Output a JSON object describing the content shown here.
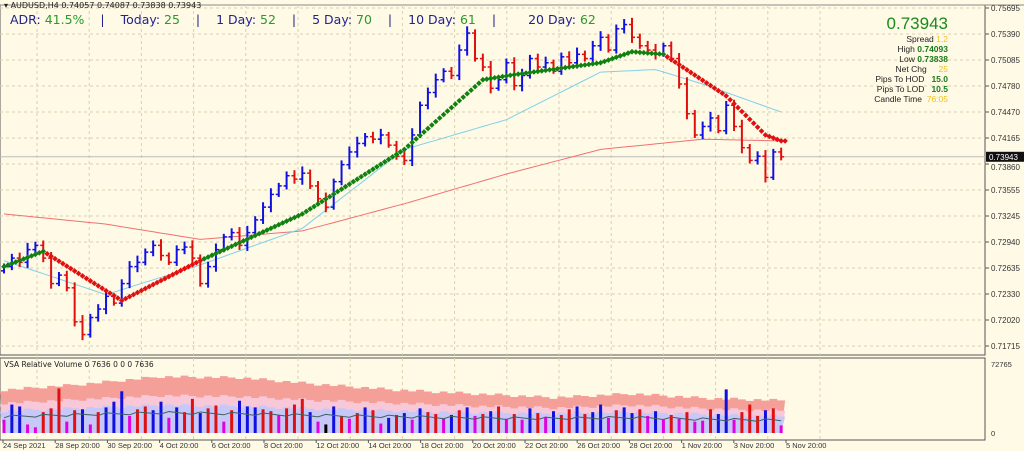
{
  "header": {
    "symbol_line": "AUDUSD,H4  0.74057 0.74087 0.73838 0.73943"
  },
  "adr_bar": {
    "adr_label": "ADR:",
    "adr_value": "41.5%",
    "today_label": "Today:",
    "today_value": "25",
    "day1_label": "1 Day:",
    "day1_value": "52",
    "day5_label": "5 Day:",
    "day5_value": "70",
    "day10_label": "10 Day:",
    "day10_value": "61",
    "day20_label": "20 Day:",
    "day20_value": "62",
    "separator": "|"
  },
  "info_panel": {
    "price": "0.73943",
    "spread_label": "Spread",
    "spread_value": "1.2",
    "high_label": "High",
    "high_value": "0.74093",
    "low_label": "Low",
    "low_value": "0.73838",
    "netchg_label": "Net Chg",
    "netchg_value": "25",
    "pips_hod_label": "Pips To HOD",
    "pips_hod_value": "15.0",
    "pips_lod_label": "Pips To LOD",
    "pips_lod_value": "10.5",
    "candle_time_label": "Candle Time",
    "candle_time_value": "76:05"
  },
  "volume_pane": {
    "title": "VSA Relative Volume 0 7636 0 0 0 7636",
    "max_label": "72765",
    "min_label": "0"
  },
  "colors": {
    "background": "#fffae6",
    "bull": "#1010e0",
    "bear": "#e01010",
    "fast_ma": "#7fd0e8",
    "slow_ma": "#f07070",
    "trend_up": "#108010",
    "trend_down": "#e01010",
    "vol_climax": "#f4a098",
    "vol_high": "#f8c8d8",
    "vol_avg": "#c8c8f8",
    "vol_low": "#e000e0"
  },
  "chart_data": [
    {
      "type": "line",
      "subtype": "ohlc-bars",
      "symbol": "AUDUSD",
      "timeframe": "H4",
      "y_ticks": [
        "0.75695",
        "0.75390",
        "0.75085",
        "0.74780",
        "0.74470",
        "0.74165",
        "0.73860",
        "0.73555",
        "0.73245",
        "0.72940",
        "0.72635",
        "0.72330",
        "0.72020",
        "0.71715"
      ],
      "ylim": [
        0.71715,
        0.75695
      ],
      "current_price_label": "0.73943",
      "x_ticks": [
        "24 Sep 2021",
        "28 Sep 20:00",
        "30 Sep 20:00",
        "4 Oct 20:00",
        "6 Oct 20:00",
        "8 Oct 20:00",
        "12 Oct 20:00",
        "14 Oct 20:00",
        "18 Oct 20:00",
        "20 Oct 20:00",
        "22 Oct 20:00",
        "26 Oct 20:00",
        "28 Oct 20:00",
        "1 Nov 20:00",
        "3 Nov 20:00",
        "5 Nov 20:00"
      ],
      "grid": true,
      "closes": [
        0.7265,
        0.7275,
        0.727,
        0.7285,
        0.729,
        0.7275,
        0.7245,
        0.7255,
        0.724,
        0.72,
        0.7185,
        0.7205,
        0.7215,
        0.723,
        0.7222,
        0.7245,
        0.7265,
        0.727,
        0.7282,
        0.729,
        0.7278,
        0.727,
        0.7285,
        0.7288,
        0.7275,
        0.7245,
        0.7265,
        0.7285,
        0.73,
        0.7305,
        0.729,
        0.7305,
        0.732,
        0.7335,
        0.735,
        0.736,
        0.7372,
        0.7368,
        0.7375,
        0.736,
        0.7345,
        0.7335,
        0.7365,
        0.7385,
        0.74,
        0.741,
        0.7418,
        0.7415,
        0.742,
        0.7408,
        0.7395,
        0.739,
        0.742,
        0.7455,
        0.747,
        0.7485,
        0.7495,
        0.749,
        0.752,
        0.754,
        0.751,
        0.75,
        0.7475,
        0.7485,
        0.7505,
        0.7478,
        0.749,
        0.751,
        0.75,
        0.7505,
        0.7495,
        0.7512,
        0.7505,
        0.7515,
        0.751,
        0.7525,
        0.7535,
        0.752,
        0.7545,
        0.755,
        0.7535,
        0.7525,
        0.752,
        0.7515,
        0.7525,
        0.751,
        0.748,
        0.7445,
        0.742,
        0.743,
        0.744,
        0.7425,
        0.7455,
        0.743,
        0.7405,
        0.739,
        0.7395,
        0.737,
        0.74,
        0.73943
      ],
      "fast_ma": {
        "at": [
          0,
          13,
          25,
          38,
          51,
          64,
          76,
          83,
          89,
          99
        ],
        "values": [
          0.7272,
          0.7232,
          0.7267,
          0.731,
          0.7403,
          0.7438,
          0.7494,
          0.7497,
          0.748,
          0.7447
        ]
      },
      "slow_ma": {
        "at": [
          0,
          13,
          25,
          38,
          51,
          64,
          76,
          89,
          99
        ],
        "values": [
          0.7327,
          0.7315,
          0.7297,
          0.7307,
          0.7339,
          0.7374,
          0.7403,
          0.7415,
          0.7413
        ]
      },
      "trend_line": {
        "at": [
          0,
          5,
          15,
          25,
          38,
          51,
          61,
          65,
          76,
          80,
          84,
          92,
          97,
          99
        ],
        "values": [
          0.7265,
          0.7283,
          0.7225,
          0.7272,
          0.7327,
          0.7403,
          0.7485,
          0.7491,
          0.7505,
          0.7518,
          0.7515,
          0.7466,
          0.742,
          0.7413
        ],
        "direction": [
          "up",
          "down",
          "down",
          "up",
          "up",
          "up",
          "up",
          "up",
          "up",
          "up",
          "down",
          "down",
          "down",
          "down"
        ]
      }
    },
    {
      "type": "bar",
      "title": "VSA Relative Volume 0 7636 0 0 0 7636",
      "ylim": [
        0,
        72765
      ],
      "volumes": [
        14000,
        30000,
        28000,
        9000,
        6000,
        22000,
        26000,
        47000,
        12000,
        24000,
        25000,
        9000,
        22000,
        27000,
        33000,
        44000,
        18000,
        25000,
        28000,
        24000,
        33000,
        16000,
        27000,
        22000,
        36000,
        21000,
        26000,
        29000,
        12000,
        24000,
        34000,
        28000,
        27000,
        25000,
        23000,
        19000,
        26000,
        30000,
        36000,
        22000,
        12000,
        9000,
        28000,
        18000,
        15000,
        21000,
        27000,
        24000,
        10000,
        16000,
        19000,
        21000,
        14000,
        26000,
        22000,
        20000,
        15000,
        19000,
        24000,
        27000,
        18000,
        20000,
        23000,
        28000,
        15000,
        20000,
        14000,
        26000,
        21000,
        17000,
        23000,
        19000,
        25000,
        28000,
        20000,
        22000,
        30000,
        16000,
        24000,
        27000,
        21000,
        25000,
        18000,
        23000,
        14000,
        19000,
        15000,
        22000,
        12000,
        13000,
        25000,
        20000,
        46000,
        14000,
        22000,
        30000,
        18000,
        24000,
        26000,
        8000
      ],
      "bar_colors": [
        "m",
        "b",
        "b",
        "m",
        "m",
        "r",
        "r",
        "r",
        "m",
        "r",
        "b",
        "m",
        "r",
        "b",
        "b",
        "b",
        "m",
        "r",
        "r",
        "b",
        "b",
        "m",
        "b",
        "r",
        "r",
        "b",
        "r",
        "r",
        "m",
        "r",
        "b",
        "b",
        "b",
        "r",
        "r",
        "m",
        "r",
        "r",
        "r",
        "b",
        "m",
        "k",
        "b",
        "r",
        "m",
        "r",
        "b",
        "r",
        "m",
        "b",
        "r",
        "b",
        "m",
        "b",
        "r",
        "r",
        "m",
        "b",
        "r",
        "b",
        "m",
        "r",
        "b",
        "r",
        "m",
        "r",
        "m",
        "b",
        "r",
        "m",
        "b",
        "r",
        "r",
        "b",
        "r",
        "b",
        "b",
        "m",
        "r",
        "b",
        "b",
        "r",
        "m",
        "b",
        "m",
        "r",
        "m",
        "r",
        "m",
        "m",
        "r",
        "b",
        "b",
        "m",
        "r",
        "r",
        "r",
        "b",
        "r",
        "m"
      ],
      "envelope_climax": {
        "at": [
          0,
          10,
          20,
          30,
          40,
          50,
          60,
          70,
          80,
          90,
          99
        ],
        "values": [
          44000,
          50000,
          58000,
          57000,
          50000,
          44000,
          40000,
          36000,
          40000,
          35000,
          33000
        ]
      },
      "envelope_high": {
        "at": [
          0,
          10,
          20,
          30,
          40,
          50,
          60,
          70,
          80,
          90,
          99
        ],
        "values": [
          30000,
          34000,
          38000,
          37000,
          33000,
          30000,
          27000,
          25000,
          28000,
          24000,
          22000
        ]
      },
      "envelope_avg": {
        "at": [
          0,
          10,
          20,
          30,
          40,
          50,
          60,
          70,
          80,
          90,
          99
        ],
        "values": [
          22000,
          25000,
          28000,
          27000,
          24000,
          22000,
          20000,
          19000,
          21000,
          18000,
          16000
        ]
      },
      "average_line": {
        "at": [
          0,
          10,
          20,
          30,
          40,
          50,
          60,
          70,
          80,
          90,
          99
        ],
        "values": [
          16000,
          18000,
          20000,
          19000,
          17000,
          16000,
          14500,
          14000,
          15000,
          13000,
          12000
        ]
      }
    }
  ]
}
